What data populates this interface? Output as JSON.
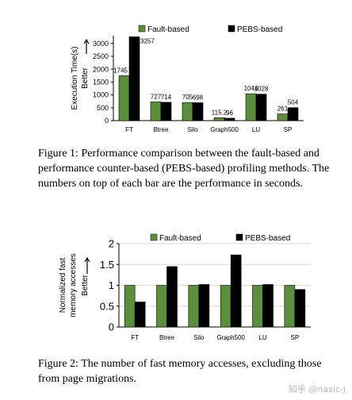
{
  "colors": {
    "fault": "#5b8f3c",
    "pebs": "#000000",
    "axis": "#000000",
    "grid": "#d9d9d9"
  },
  "captions": {
    "fig1": "Figure 1: Performance comparison between the fault-based and performance counter-based (PEBS-based) profiling methods. The numbers on top of each bar are the performance in seconds.",
    "fig2": "Figure 2: The number of fast memory accesses, excluding those from page migrations."
  },
  "watermark": "知乎 @nasic-j",
  "chart_data": [
    {
      "type": "bar",
      "categories": [
        "FT",
        "Btree",
        "Silo",
        "Graph500",
        "LU",
        "SP"
      ],
      "series": [
        {
          "name": "Fault-based",
          "values": [
            1745,
            727,
            705,
            115.2,
            1044,
            261
          ],
          "labels": [
            "1745",
            "727",
            "705",
            "115.2",
            "1044",
            "261"
          ]
        },
        {
          "name": "PEBS-based",
          "values": [
            3257,
            714,
            698,
            96,
            1028,
            504
          ],
          "labels": [
            "3257",
            "714",
            "698",
            "96",
            "1028",
            "504"
          ]
        }
      ],
      "ylabel": "Execution Time(s)",
      "yarrow_label": "Better",
      "ylim": [
        0,
        3300
      ],
      "yticks": [
        0,
        500,
        1000,
        1500,
        2000,
        2500,
        3000
      ],
      "grid": false,
      "legend": "top"
    },
    {
      "type": "bar",
      "categories": [
        "FT",
        "Btree",
        "Silo",
        "Graph500",
        "LU",
        "SP"
      ],
      "series": [
        {
          "name": "Fault-based",
          "values": [
            1,
            1,
            1,
            1,
            1,
            1
          ]
        },
        {
          "name": "PEBS-based",
          "values": [
            0.6,
            1.45,
            1.02,
            1.73,
            1.02,
            0.9
          ]
        }
      ],
      "ylabel": "Normalized fast memory accesses",
      "yarrow_label": "Better",
      "ylim": [
        0,
        2
      ],
      "yticks": [
        0,
        0.5,
        1,
        1.5,
        2
      ],
      "grid": true,
      "legend": "top"
    }
  ]
}
